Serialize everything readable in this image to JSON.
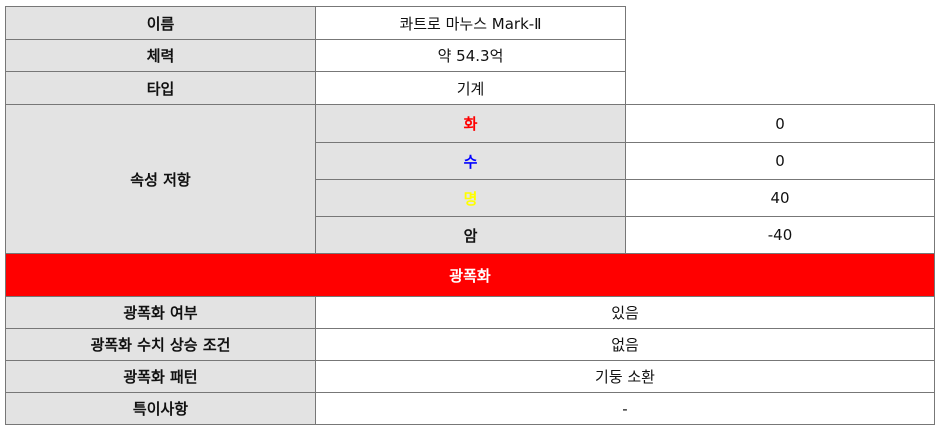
{
  "info": {
    "name": {
      "label": "이름",
      "value": "콰트로 마누스 Mark-Ⅱ"
    },
    "hp": {
      "label": "체력",
      "value": "약 54.3억"
    },
    "type": {
      "label": "타입",
      "value": "기계"
    }
  },
  "resist": {
    "label": "속성 저항",
    "items": [
      {
        "element": "화",
        "value": "0",
        "color": "#ff0000"
      },
      {
        "element": "수",
        "value": "0",
        "color": "#0000ff"
      },
      {
        "element": "명",
        "value": "40",
        "color": "#ffff00"
      },
      {
        "element": "암",
        "value": "-40",
        "color": "#111111"
      }
    ]
  },
  "berserk": {
    "title": "광폭화",
    "banner_color": "#ff0000",
    "rows": [
      {
        "label": "광폭화 여부",
        "value": "있음"
      },
      {
        "label": "광폭화 수치 상승 조건",
        "value": "없음"
      },
      {
        "label": "광폭화 패턴",
        "value": "기둥 소환"
      },
      {
        "label": "특이사항",
        "value": "-"
      }
    ]
  }
}
